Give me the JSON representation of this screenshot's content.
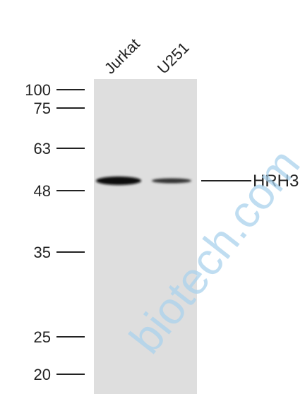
{
  "lanes": [
    "Jurkat",
    "U251"
  ],
  "markers": [
    "100",
    "75",
    "63",
    "48",
    "35",
    "25",
    "20"
  ],
  "band_label": "HRH3",
  "watermark": "biotech.com"
}
